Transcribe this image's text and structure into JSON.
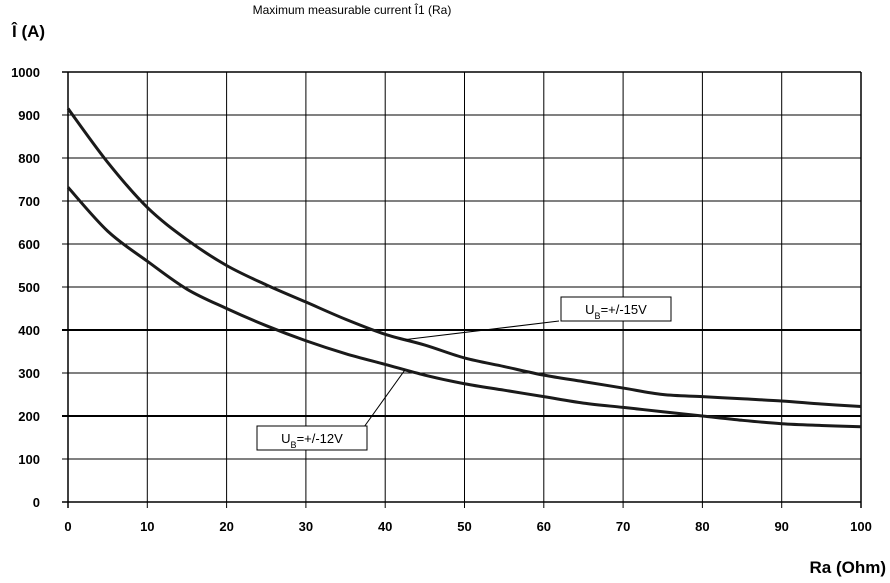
{
  "chart_data": {
    "type": "line",
    "title": "Maximum measurable current Î1 (Ra)",
    "ylabel": "Î (A)",
    "xlabel": "Ra (Ohm)",
    "xlim": [
      0,
      100
    ],
    "ylim": [
      0,
      1000
    ],
    "x_ticks": [
      "0",
      "10",
      "20",
      "30",
      "40",
      "50",
      "60",
      "70",
      "80",
      "90",
      "100"
    ],
    "y_ticks": [
      "0",
      "100",
      "200",
      "300",
      "400",
      "500",
      "600",
      "700",
      "800",
      "900",
      "1000"
    ],
    "grid": true,
    "highlighted_gridlines_y": [
      200,
      400
    ],
    "series": [
      {
        "name": "UB=+/-15V",
        "x": [
          0,
          5,
          10,
          15,
          20,
          25,
          30,
          35,
          40,
          45,
          50,
          55,
          60,
          65,
          70,
          75,
          80,
          85,
          90,
          95,
          100
        ],
        "y": [
          915,
          790,
          685,
          610,
          550,
          505,
          465,
          425,
          390,
          365,
          335,
          315,
          295,
          280,
          265,
          250,
          245,
          240,
          235,
          228,
          222
        ]
      },
      {
        "name": "UB=+/-12V",
        "x": [
          0,
          5,
          10,
          15,
          20,
          25,
          30,
          35,
          40,
          45,
          50,
          55,
          60,
          65,
          70,
          75,
          80,
          85,
          90,
          95,
          100
        ],
        "y": [
          732,
          630,
          560,
          495,
          450,
          410,
          375,
          345,
          320,
          295,
          275,
          260,
          245,
          230,
          220,
          210,
          200,
          190,
          182,
          178,
          175
        ]
      }
    ],
    "annotations": [
      {
        "text_main": "U",
        "text_sub": "B",
        "text_rest": "=+/-15V",
        "points_to_series": "UB=+/-15V",
        "target_x": 42.5
      },
      {
        "text_main": "U",
        "text_sub": "B",
        "text_rest": "=+/-12V",
        "points_to_series": "UB=+/-12V",
        "target_x": 42.5
      }
    ],
    "colors": {
      "line": "#1a1a1a",
      "grid": "#000000",
      "background": "#ffffff"
    }
  }
}
